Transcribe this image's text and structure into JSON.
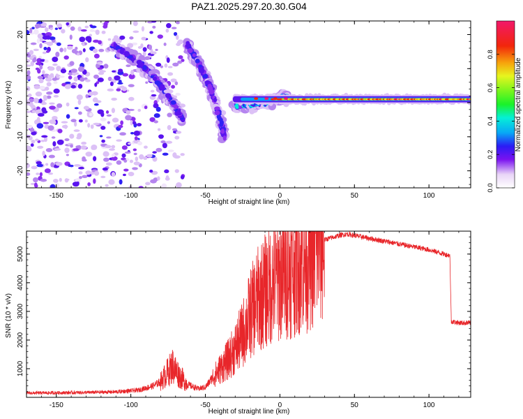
{
  "title": "PAZ1.2025.297.20.30.G04",
  "colors": {
    "snr_line": "#e8262a",
    "axis": "#000000"
  },
  "chart_data": [
    {
      "type": "heatmap",
      "name": "spectrogram",
      "xlabel": "Height of straight line (km)",
      "ylabel": "Frequency (Hz)",
      "xlim": [
        -170,
        128
      ],
      "ylim": [
        -25,
        24
      ],
      "xticks": [
        -150,
        -100,
        -50,
        0,
        50,
        100
      ],
      "yticks": [
        -20,
        -10,
        0,
        10,
        20
      ],
      "colorbar": {
        "label": "Normalized spectral amplitude",
        "range": [
          0,
          1
        ],
        "ticks": [
          "0.0",
          "0.2",
          "0.4",
          "0.6",
          "0.8"
        ],
        "tick_values": [
          0,
          0.2,
          0.4,
          0.6,
          0.8
        ]
      },
      "features": {
        "carrier": {
          "x_from": -30,
          "x_to": 128,
          "freq_hz": 1.0
        },
        "tracks": [
          {
            "x": [
              -112,
              -95,
              -85,
              -75,
              -65
            ],
            "f": [
              17,
              12,
              8,
              2,
              -5
            ]
          },
          {
            "x": [
              -62,
              -55,
              -48,
              -42,
              -37
            ],
            "f": [
              17,
              12,
              6,
              -2,
              -10
            ]
          },
          {
            "x": [
              -30,
              -20,
              -10,
              0,
              5
            ],
            "f": [
              -1,
              -0.5,
              0,
              1.5,
              1.5
            ]
          }
        ],
        "noise_region": {
          "x_from": -170,
          "x_to": -90
        }
      }
    },
    {
      "type": "line",
      "name": "snr",
      "xlabel": "Height of straight line (km)",
      "ylabel": "SNR (10 * v/v)",
      "xlim": [
        -170,
        128
      ],
      "ylim": [
        0,
        5800
      ],
      "xticks": [
        -150,
        -100,
        -50,
        0,
        50,
        100
      ],
      "yticks": [
        1000,
        2000,
        3000,
        4000,
        5000
      ],
      "series": [
        {
          "name": "SNR",
          "x": [
            -170,
            -150,
            -130,
            -110,
            -95,
            -85,
            -80,
            -75,
            -72,
            -68,
            -62,
            -55,
            -50,
            -45,
            -40,
            -35,
            -30,
            -25,
            -20,
            -15,
            -10,
            -5,
            0,
            10,
            20,
            25,
            30,
            40,
            45,
            50,
            60,
            70,
            80,
            90,
            100,
            110,
            114,
            115,
            120,
            128
          ],
          "y": [
            150,
            160,
            170,
            190,
            250,
            400,
            550,
            900,
            1100,
            800,
            450,
            300,
            350,
            700,
            1000,
            1300,
            1700,
            2200,
            2900,
            3400,
            3700,
            4000,
            4200,
            4600,
            5000,
            5300,
            5500,
            5650,
            5700,
            5650,
            5550,
            5450,
            5350,
            5250,
            5150,
            5000,
            4950,
            2650,
            2600,
            2600
          ]
        }
      ]
    }
  ]
}
